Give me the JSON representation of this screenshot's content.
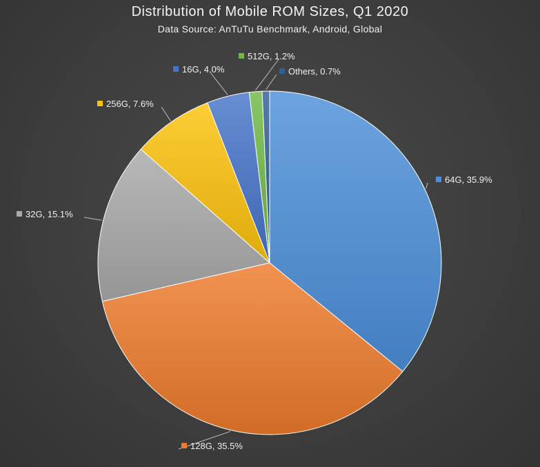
{
  "chart_data": {
    "type": "pie",
    "title": "Distribution of Mobile ROM Sizes, Q1 2020",
    "subtitle": "Data Source: AnTuTu Benchmark, Android, Global",
    "slices": [
      {
        "label": "64G",
        "value": 35.9,
        "display": "64G, 35.9%",
        "color": "#4c8fd9"
      },
      {
        "label": "128G",
        "value": 35.5,
        "display": "128G, 35.5%",
        "color": "#ee7b2c"
      },
      {
        "label": "32G",
        "value": 15.1,
        "display": "32G, 15.1%",
        "color": "#a9a9a9"
      },
      {
        "label": "256G",
        "value": 7.6,
        "display": "256G, 7.6%",
        "color": "#fcc20b"
      },
      {
        "label": "16G",
        "value": 4.0,
        "display": "16G, 4.0%",
        "color": "#4674c8"
      },
      {
        "label": "512G",
        "value": 1.2,
        "display": "512G, 1.2%",
        "color": "#6fb945"
      },
      {
        "label": "Others",
        "value": 0.7,
        "display": "Others, 0.7%",
        "color": "#2e5f96"
      }
    ],
    "start_angle": "12 o'clock",
    "direction": "clockwise",
    "legend": "none"
  }
}
